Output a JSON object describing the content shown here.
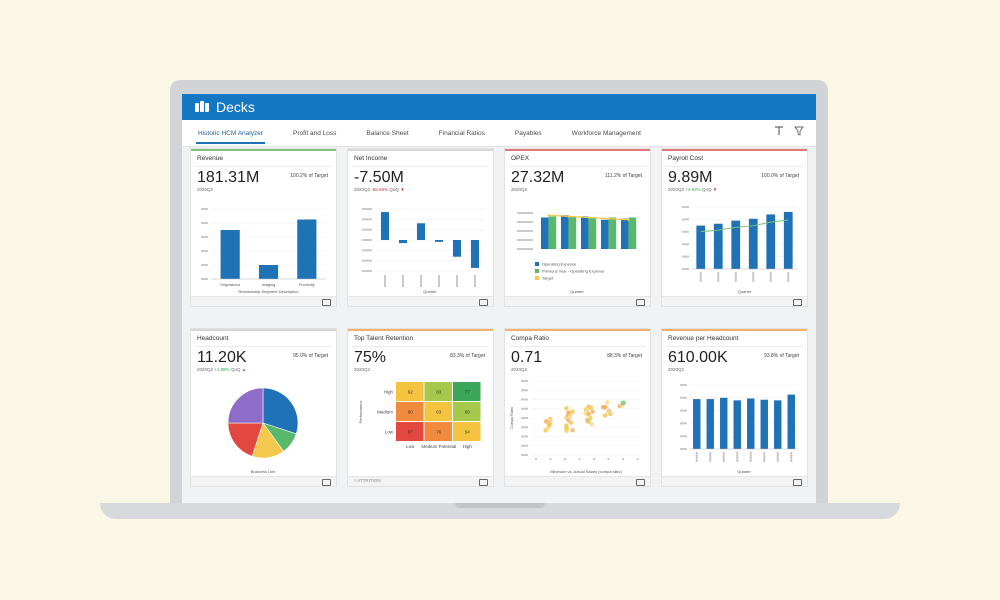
{
  "app": {
    "title": "Decks"
  },
  "tabs": [
    {
      "label": "Historic HCM Analyzer",
      "active": true
    },
    {
      "label": "Profit and Loss",
      "active": false
    },
    {
      "label": "Balance Sheet",
      "active": false
    },
    {
      "label": "Financial Ratios",
      "active": false
    },
    {
      "label": "Payables",
      "active": false
    },
    {
      "label": "Workforce Management",
      "active": false
    }
  ],
  "colors": {
    "header": "#1477c4",
    "bar": "#1f72b6",
    "green": "#58b96a",
    "yellow": "#f2c94c",
    "green_line": "#7ec37f",
    "red_line": "#e07a7a",
    "orange_line": "#f1b36b"
  },
  "cards": {
    "revenue": {
      "title": "Revenue",
      "metric": "181.31M",
      "target": "100.2% of Target",
      "period": "2020Q2",
      "xlabel": "Relationship Segment Description"
    },
    "net_income": {
      "title": "Net Income",
      "metric": "-7.50M",
      "target": "",
      "period": "2020Q2",
      "change": "-86.69%",
      "qoq": "QoQ",
      "xlabel": "Quarter"
    },
    "opex": {
      "title": "OPEX",
      "metric": "27.32M",
      "target": "111.2% of Target",
      "period": "2020Q2",
      "xlabel": "Quarter",
      "legend": [
        "Operating Expense",
        "Previous Year - Operating Expense",
        "Target"
      ]
    },
    "payroll": {
      "title": "Payroll Cost",
      "metric": "9.89M",
      "target": "100.0% of Target",
      "period": "2020Q2",
      "change": "+4.93%",
      "qoq": "QoQ",
      "xlabel": "Quarter"
    },
    "headcount": {
      "title": "Headcount",
      "metric": "11.20K",
      "target": "95.0% of Target",
      "period": "2020Q2",
      "change": "+1.89%",
      "qoq": "QoQ",
      "xlabel": "Business Unit"
    },
    "talent": {
      "title": "Top Talent Retention",
      "metric": "75%",
      "target": "83.3% of Target",
      "period": "2020Q2",
      "ylabel": "Performance",
      "rows": [
        "High",
        "Medium",
        "Low"
      ],
      "cols": [
        "Low",
        "Medium Potential",
        "High"
      ],
      "cells": [
        [
          "92",
          "83",
          "77"
        ],
        [
          "80",
          "63",
          "69"
        ],
        [
          "87",
          "76",
          "54"
        ]
      ],
      "footer": "ATTRITION"
    },
    "compa": {
      "title": "Compa Ratio",
      "metric": "0.71",
      "target": "88.3% of Target",
      "period": "2020Q2",
      "xlabel": "Minimum vs. Actual Salary (compa ratio)",
      "ylabel": "Compa Ratio"
    },
    "rev_head": {
      "title": "Revenue per Headcount",
      "metric": "610.00K",
      "target": "93.8% of Target",
      "period": "2020Q2",
      "xlabel": "Quarter"
    }
  },
  "chart_data": [
    {
      "type": "bar",
      "title": "Revenue",
      "categories": [
        "Originations",
        "Imaging",
        "Proximity"
      ],
      "values": [
        70,
        20,
        85
      ],
      "ylim": [
        0,
        100
      ],
      "xlabel": "Relationship Segment Description"
    },
    {
      "type": "bar",
      "title": "Net Income",
      "categories": [
        "2019Q1",
        "2019Q2",
        "2019Q3",
        "2019Q4",
        "2020Q1",
        "2020Q2"
      ],
      "values": [
        45,
        -5,
        27,
        -3,
        -27,
        -45
      ],
      "ylim": [
        -50,
        50
      ],
      "xlabel": "Quarter"
    },
    {
      "type": "bar",
      "title": "OPEX",
      "categories": [
        "2019Q1",
        "2019Q2",
        "2019Q3",
        "2019Q4",
        "2020Q1"
      ],
      "series": [
        {
          "name": "Operating Expense",
          "values": [
            28,
            30,
            29,
            26,
            27
          ]
        },
        {
          "name": "Previous Year - Operating Expense",
          "values": [
            29,
            29,
            28,
            28,
            28
          ]
        },
        {
          "name": "Target",
          "values": [
            30,
            29,
            28,
            27,
            26
          ]
        }
      ],
      "ylim": [
        0,
        32
      ],
      "xlabel": "Quarter"
    },
    {
      "type": "bar",
      "title": "Payroll Cost",
      "categories": [
        "2019Q1",
        "2019Q2",
        "2019Q3",
        "2019Q4",
        "2020Q1",
        "2020Q2"
      ],
      "values": [
        70,
        73,
        78,
        81,
        88,
        92
      ],
      "ylim": [
        0,
        100
      ],
      "xlabel": "Quarter"
    },
    {
      "type": "pie",
      "title": "Headcount",
      "values": [
        30,
        10,
        15,
        20,
        25
      ]
    },
    {
      "type": "heatmap",
      "title": "Top Talent Retention"
    },
    {
      "type": "scatter",
      "title": "Compa Ratio"
    },
    {
      "type": "bar",
      "title": "Revenue per Headcount",
      "categories": [
        "2019Q1",
        "2019Q2",
        "2019Q3",
        "2019Q4",
        "2020Q1",
        "2020Q2",
        "2020Q3",
        "2020Q4"
      ],
      "values": [
        78,
        78,
        80,
        76,
        79,
        77,
        76,
        85
      ],
      "ylim": [
        0,
        100
      ],
      "xlabel": "Quarter"
    }
  ]
}
